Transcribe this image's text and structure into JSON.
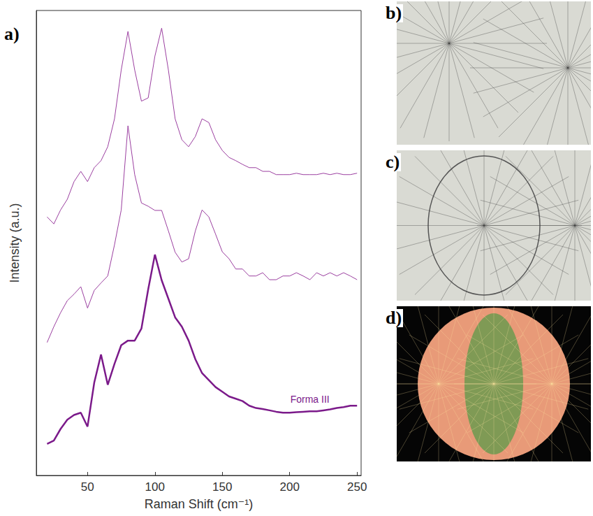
{
  "chart_data": {
    "type": "line",
    "panel_label": "a)",
    "x_label": "Raman Shift (cm⁻¹)",
    "y_label": "Intensity (a.u.)",
    "x": [
      20,
      25,
      30,
      35,
      40,
      45,
      50,
      55,
      60,
      65,
      70,
      75,
      80,
      85,
      90,
      95,
      100,
      105,
      110,
      115,
      120,
      125,
      130,
      135,
      140,
      145,
      150,
      155,
      160,
      165,
      170,
      175,
      180,
      185,
      190,
      195,
      200,
      205,
      210,
      215,
      220,
      225,
      230,
      235,
      240,
      245,
      250
    ],
    "series": [
      {
        "color": "#9b3fa0",
        "line_style": "thin",
        "values": [
          55.6,
          54.1,
          57.1,
          59.4,
          63.2,
          65.4,
          63.2,
          66.2,
          67.7,
          70.7,
          76.7,
          87.2,
          95.5,
          87.2,
          80.5,
          81.2,
          90.2,
          96.2,
          87.2,
          76.7,
          72.2,
          70.7,
          72.9,
          76.7,
          75.9,
          72.2,
          69.9,
          68.4,
          67.7,
          66.9,
          66.2,
          66.2,
          65.4,
          65.4,
          64.7,
          64.7,
          64.7,
          65.0,
          64.7,
          64.7,
          64.7,
          65.0,
          64.7,
          65.0,
          64.7,
          64.7,
          65.0
        ]
      },
      {
        "color": "#9b3fa0",
        "line_style": "thin",
        "values": [
          28.6,
          32.0,
          35.0,
          37.6,
          39.0,
          40.6,
          36.0,
          39.8,
          41.4,
          42.9,
          49.6,
          57.1,
          75.2,
          64.7,
          58.6,
          57.9,
          57.0,
          57.0,
          52.6,
          48.0,
          45.9,
          46.6,
          52.6,
          57.1,
          55.6,
          51.9,
          48.1,
          46.6,
          44.4,
          44.4,
          42.9,
          42.9,
          43.6,
          42.1,
          42.1,
          42.9,
          42.9,
          43.6,
          42.9,
          42.1,
          43.6,
          42.9,
          43.6,
          42.9,
          43.6,
          42.9,
          42.1
        ]
      },
      {
        "name": "Forma III",
        "color": "#7b1a8a",
        "line_style": "thick",
        "values": [
          6.8,
          7.5,
          10.0,
          12.0,
          13.0,
          13.5,
          10.5,
          20.0,
          26.0,
          19.5,
          24.0,
          28.0,
          29.0,
          29.0,
          31.6,
          40.0,
          47.5,
          42.0,
          38.0,
          34.0,
          32.0,
          29.0,
          25.0,
          22.0,
          20.5,
          19.0,
          18.0,
          17.0,
          16.5,
          16.0,
          15.0,
          14.5,
          14.3,
          14.0,
          13.7,
          13.5,
          13.5,
          13.6,
          13.7,
          13.8,
          13.8,
          14.0,
          14.2,
          14.5,
          14.7,
          15.0,
          15.0
        ]
      }
    ],
    "xlim": [
      12,
      253
    ],
    "xticks": [
      50,
      100,
      150,
      200,
      250
    ],
    "ylim": [
      0,
      100
    ],
    "tick_labels": "x",
    "grid": false
  },
  "panels": [
    {
      "label": "b)"
    },
    {
      "label": "c)"
    },
    {
      "label": "d)"
    }
  ]
}
